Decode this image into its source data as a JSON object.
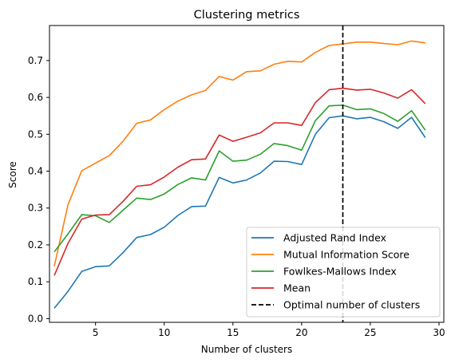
{
  "chart_data": {
    "type": "line",
    "title": "Clustering metrics",
    "xlabel": "Number of clusters",
    "ylabel": "Score",
    "xlim": [
      1.65,
      30.35
    ],
    "ylim": [
      -0.01,
      0.795
    ],
    "xticks": [
      5,
      10,
      15,
      20,
      25,
      30
    ],
    "yticks": [
      0.0,
      0.1,
      0.2,
      0.3,
      0.4,
      0.5,
      0.6,
      0.7
    ],
    "grid": false,
    "legend_position": "lower-right",
    "x": [
      2,
      3,
      4,
      5,
      6,
      7,
      8,
      9,
      10,
      11,
      12,
      13,
      14,
      15,
      16,
      17,
      18,
      19,
      20,
      21,
      22,
      23,
      24,
      25,
      26,
      27,
      28,
      29
    ],
    "series": [
      {
        "name": "Adjusted Rand Index",
        "color": "#1f77b4",
        "values": [
          0.028,
          0.074,
          0.128,
          0.141,
          0.143,
          0.179,
          0.22,
          0.228,
          0.248,
          0.28,
          0.304,
          0.305,
          0.383,
          0.368,
          0.376,
          0.395,
          0.427,
          0.426,
          0.418,
          0.5,
          0.545,
          0.55,
          0.542,
          0.546,
          0.534,
          0.516,
          0.546,
          0.491
        ]
      },
      {
        "name": "Mutual Information Score",
        "color": "#ff7f0e",
        "values": [
          0.142,
          0.309,
          0.401,
          0.422,
          0.442,
          0.481,
          0.53,
          0.539,
          0.567,
          0.59,
          0.607,
          0.619,
          0.657,
          0.647,
          0.67,
          0.672,
          0.69,
          0.698,
          0.696,
          0.722,
          0.741,
          0.745,
          0.75,
          0.75,
          0.746,
          0.743,
          0.753,
          0.748
        ]
      },
      {
        "name": "Fowlkes-Mallows Index",
        "color": "#2ca02c",
        "values": [
          0.181,
          0.23,
          0.282,
          0.279,
          0.261,
          0.294,
          0.327,
          0.323,
          0.338,
          0.364,
          0.382,
          0.376,
          0.455,
          0.427,
          0.43,
          0.446,
          0.475,
          0.469,
          0.457,
          0.537,
          0.577,
          0.579,
          0.567,
          0.569,
          0.556,
          0.535,
          0.564,
          0.511
        ]
      },
      {
        "name": "Mean",
        "color": "#d62728",
        "values": [
          0.117,
          0.204,
          0.27,
          0.281,
          0.282,
          0.318,
          0.359,
          0.363,
          0.384,
          0.411,
          0.431,
          0.433,
          0.498,
          0.481,
          0.492,
          0.504,
          0.531,
          0.531,
          0.524,
          0.586,
          0.621,
          0.625,
          0.62,
          0.622,
          0.612,
          0.598,
          0.621,
          0.583
        ]
      }
    ],
    "vline": {
      "name": "Optimal number of clusters",
      "x": 23,
      "color": "#000000",
      "style": "dashed"
    }
  }
}
